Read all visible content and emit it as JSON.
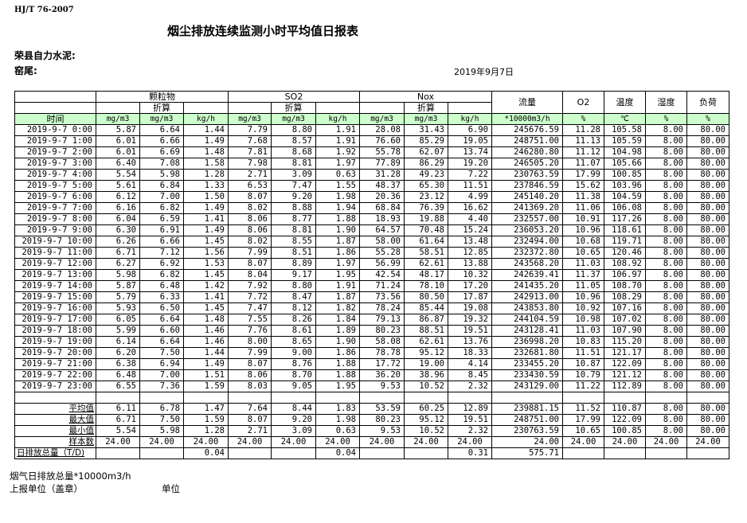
{
  "standard": "HJ/T  76-2007",
  "title": "烟尘排放连续监测小时平均值日报表",
  "company": "荣县自力水泥:",
  "kiln": "窑尾:",
  "date": "2019年9月7日",
  "header": {
    "particulate": "颗粒物",
    "so2": "SO2",
    "nox": "Nox",
    "converted": "折算",
    "flow": "流量",
    "o2": "O2",
    "temp": "温度",
    "humidity": "湿度",
    "load": "负荷",
    "time": "时间",
    "units": [
      "mg/m3",
      "mg/m3",
      "kg/h",
      "mg/m3",
      "mg/m3",
      "kg/h",
      "mg/m3",
      "mg/m3",
      "kg/h",
      "*10000m3/h",
      "%",
      "℃",
      "%",
      "%"
    ]
  },
  "rows": [
    [
      "2019-9-7 0:00",
      "5.87",
      "6.64",
      "1.44",
      "7.79",
      "8.80",
      "1.91",
      "28.08",
      "31.43",
      "6.90",
      "245676.59",
      "11.28",
      "105.58",
      "8.00",
      "80.00"
    ],
    [
      "2019-9-7 1:00",
      "6.01",
      "6.66",
      "1.49",
      "7.68",
      "8.57",
      "1.91",
      "76.60",
      "85.29",
      "19.05",
      "248751.00",
      "11.13",
      "105.59",
      "8.00",
      "80.00"
    ],
    [
      "2019-9-7 2:00",
      "6.01",
      "6.69",
      "1.48",
      "7.81",
      "8.68",
      "1.92",
      "55.78",
      "62.07",
      "13.74",
      "246280.80",
      "11.12",
      "104.98",
      "8.00",
      "80.00"
    ],
    [
      "2019-9-7 3:00",
      "6.40",
      "7.08",
      "1.58",
      "7.98",
      "8.81",
      "1.97",
      "77.89",
      "86.29",
      "19.20",
      "246505.20",
      "11.07",
      "105.66",
      "8.00",
      "80.00"
    ],
    [
      "2019-9-7 4:00",
      "5.54",
      "5.98",
      "1.28",
      "2.71",
      "3.09",
      "0.63",
      "31.28",
      "49.23",
      "7.22",
      "230763.59",
      "17.99",
      "100.85",
      "8.00",
      "80.00"
    ],
    [
      "2019-9-7 5:00",
      "5.61",
      "6.84",
      "1.33",
      "6.53",
      "7.47",
      "1.55",
      "48.37",
      "65.30",
      "11.51",
      "237846.59",
      "15.62",
      "103.96",
      "8.00",
      "80.00"
    ],
    [
      "2019-9-7 6:00",
      "6.12",
      "7.00",
      "1.50",
      "8.07",
      "9.20",
      "1.98",
      "20.36",
      "23.12",
      "4.99",
      "245140.20",
      "11.38",
      "104.59",
      "8.00",
      "80.00"
    ],
    [
      "2019-9-7 7:00",
      "6.16",
      "6.82",
      "1.49",
      "8.02",
      "8.88",
      "1.94",
      "68.84",
      "76.39",
      "16.62",
      "241369.20",
      "11.06",
      "106.08",
      "8.00",
      "80.00"
    ],
    [
      "2019-9-7 8:00",
      "6.04",
      "6.59",
      "1.41",
      "8.06",
      "8.77",
      "1.88",
      "18.93",
      "19.88",
      "4.40",
      "232557.00",
      "10.91",
      "117.26",
      "8.00",
      "80.00"
    ],
    [
      "2019-9-7 9:00",
      "6.30",
      "6.91",
      "1.49",
      "8.06",
      "8.81",
      "1.90",
      "64.57",
      "70.48",
      "15.24",
      "236053.20",
      "10.96",
      "118.61",
      "8.00",
      "80.00"
    ],
    [
      "2019-9-7 10:00",
      "6.26",
      "6.66",
      "1.45",
      "8.02",
      "8.55",
      "1.87",
      "58.00",
      "61.64",
      "13.48",
      "232494.00",
      "10.68",
      "119.71",
      "8.00",
      "80.00"
    ],
    [
      "2019-9-7 11:00",
      "6.71",
      "7.12",
      "1.56",
      "7.99",
      "8.51",
      "1.86",
      "55.28",
      "58.51",
      "12.85",
      "232372.80",
      "10.65",
      "120.46",
      "8.00",
      "80.00"
    ],
    [
      "2019-9-7 12:00",
      "6.27",
      "6.92",
      "1.53",
      "8.07",
      "8.89",
      "1.97",
      "56.99",
      "62.61",
      "13.88",
      "243568.20",
      "11.03",
      "108.92",
      "8.00",
      "80.00"
    ],
    [
      "2019-9-7 13:00",
      "5.98",
      "6.82",
      "1.45",
      "8.04",
      "9.17",
      "1.95",
      "42.54",
      "48.17",
      "10.32",
      "242639.41",
      "11.37",
      "106.97",
      "8.00",
      "80.00"
    ],
    [
      "2019-9-7 14:00",
      "5.87",
      "6.48",
      "1.42",
      "7.92",
      "8.80",
      "1.91",
      "71.24",
      "78.10",
      "17.20",
      "241435.20",
      "11.05",
      "108.70",
      "8.00",
      "80.00"
    ],
    [
      "2019-9-7 15:00",
      "5.79",
      "6.33",
      "1.41",
      "7.72",
      "8.47",
      "1.87",
      "73.56",
      "80.50",
      "17.87",
      "242913.00",
      "10.96",
      "108.29",
      "8.00",
      "80.00"
    ],
    [
      "2019-9-7 16:00",
      "5.93",
      "6.50",
      "1.45",
      "7.47",
      "8.12",
      "1.82",
      "78.24",
      "85.44",
      "19.08",
      "243853.80",
      "10.92",
      "107.16",
      "8.00",
      "80.00"
    ],
    [
      "2019-9-7 17:00",
      "6.05",
      "6.64",
      "1.48",
      "7.55",
      "8.26",
      "1.84",
      "79.13",
      "86.87",
      "19.32",
      "244104.59",
      "10.98",
      "107.02",
      "8.00",
      "80.00"
    ],
    [
      "2019-9-7 18:00",
      "5.99",
      "6.60",
      "1.46",
      "7.76",
      "8.61",
      "1.89",
      "80.23",
      "88.51",
      "19.51",
      "243128.41",
      "11.03",
      "107.90",
      "8.00",
      "80.00"
    ],
    [
      "2019-9-7 19:00",
      "6.14",
      "6.64",
      "1.46",
      "8.00",
      "8.65",
      "1.90",
      "58.08",
      "62.61",
      "13.76",
      "236998.20",
      "10.83",
      "115.20",
      "8.00",
      "80.00"
    ],
    [
      "2019-9-7 20:00",
      "6.20",
      "7.50",
      "1.44",
      "7.99",
      "9.00",
      "1.86",
      "78.78",
      "95.12",
      "18.33",
      "232681.80",
      "11.51",
      "121.17",
      "8.00",
      "80.00"
    ],
    [
      "2019-9-7 21:00",
      "6.38",
      "6.94",
      "1.49",
      "8.07",
      "8.76",
      "1.88",
      "17.72",
      "19.00",
      "4.14",
      "233455.20",
      "10.87",
      "122.09",
      "8.00",
      "80.00"
    ],
    [
      "2019-9-7 22:00",
      "6.48",
      "7.00",
      "1.51",
      "8.06",
      "8.70",
      "1.88",
      "36.20",
      "38.96",
      "8.45",
      "233430.59",
      "10.79",
      "121.12",
      "8.00",
      "80.00"
    ],
    [
      "2019-9-7 23:00",
      "6.55",
      "7.36",
      "1.59",
      "8.03",
      "9.05",
      "1.95",
      "9.53",
      "10.52",
      "2.32",
      "243129.00",
      "11.22",
      "112.89",
      "8.00",
      "80.00"
    ]
  ],
  "summary": [
    [
      "平均值",
      "6.11",
      "6.78",
      "1.47",
      "7.64",
      "8.44",
      "1.83",
      "53.59",
      "60.25",
      "12.89",
      "239881.15",
      "11.52",
      "110.87",
      "8.00",
      "80.00"
    ],
    [
      "最大值",
      "6.71",
      "7.50",
      "1.59",
      "8.07",
      "9.20",
      "1.98",
      "80.23",
      "95.12",
      "19.51",
      "248751.00",
      "17.99",
      "122.09",
      "8.00",
      "80.00"
    ],
    [
      "最小值",
      "5.54",
      "5.98",
      "1.28",
      "2.71",
      "3.09",
      "0.63",
      "9.53",
      "10.52",
      "2.32",
      "230763.59",
      "10.65",
      "100.85",
      "8.00",
      "80.00"
    ],
    [
      "样本数",
      "24.00",
      "24.00",
      "24.00",
      "24.00",
      "24.00",
      "24.00",
      "24.00",
      "24.00",
      "24.00",
      "24.00",
      "24.00",
      "24.00",
      "24.00",
      "24.00"
    ],
    [
      "日排放总量（T/D)",
      "",
      "",
      "0.04",
      "",
      "",
      "0.04",
      "",
      "",
      "0.31",
      "575.71",
      "",
      "",
      "",
      ""
    ]
  ],
  "footer": {
    "flue_total": "烟气日排放总量*10000m3/h",
    "reporting_unit": "上报单位（盖章）",
    "unit": "单位"
  }
}
